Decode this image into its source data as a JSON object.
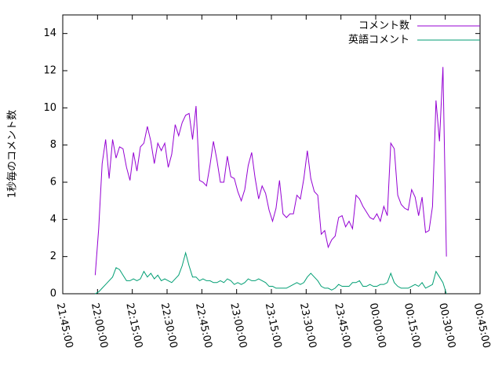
{
  "chart_data": {
    "type": "line",
    "ylabel": "1秒毎のコメント数",
    "xlim": [
      "21:45:00",
      "00:45:00"
    ],
    "xticks": [
      "21:45:00",
      "22:00:00",
      "22:15:00",
      "22:30:00",
      "22:45:00",
      "23:00:00",
      "23:15:00",
      "23:30:00",
      "23:45:00",
      "00:00:00",
      "00:15:00",
      "00:30:00",
      "00:45:00"
    ],
    "ylim": [
      0,
      15
    ],
    "yticks": [
      0,
      2,
      4,
      6,
      8,
      10,
      12,
      14
    ],
    "legend": "top-right",
    "x": [
      "21:59:00",
      "22:00:30",
      "22:02:00",
      "22:03:30",
      "22:05:00",
      "22:06:30",
      "22:08:00",
      "22:09:30",
      "22:11:00",
      "22:12:30",
      "22:14:00",
      "22:15:30",
      "22:17:00",
      "22:18:30",
      "22:20:00",
      "22:21:30",
      "22:23:00",
      "22:24:30",
      "22:26:00",
      "22:27:30",
      "22:29:00",
      "22:30:30",
      "22:32:00",
      "22:33:30",
      "22:35:00",
      "22:36:30",
      "22:38:00",
      "22:39:30",
      "22:41:00",
      "22:42:30",
      "22:44:00",
      "22:45:30",
      "22:47:00",
      "22:48:30",
      "22:50:00",
      "22:51:30",
      "22:53:00",
      "22:54:30",
      "22:56:00",
      "22:57:30",
      "22:59:00",
      "23:00:30",
      "23:02:00",
      "23:03:30",
      "23:05:00",
      "23:06:30",
      "23:08:00",
      "23:09:30",
      "23:11:00",
      "23:12:30",
      "23:14:00",
      "23:15:30",
      "23:17:00",
      "23:18:30",
      "23:20:00",
      "23:21:30",
      "23:23:00",
      "23:24:30",
      "23:26:00",
      "23:27:30",
      "23:29:00",
      "23:30:30",
      "23:32:00",
      "23:33:30",
      "23:35:00",
      "23:36:30",
      "23:38:00",
      "23:39:30",
      "23:41:00",
      "23:42:30",
      "23:44:00",
      "23:45:30",
      "23:47:00",
      "23:48:30",
      "23:50:00",
      "23:51:30",
      "23:53:00",
      "23:54:30",
      "23:56:00",
      "23:57:30",
      "23:59:00",
      "00:00:30",
      "00:02:00",
      "00:03:30",
      "00:05:00",
      "00:06:30",
      "00:08:00",
      "00:09:30",
      "00:11:00",
      "00:12:30",
      "00:14:00",
      "00:15:30",
      "00:17:00",
      "00:18:30",
      "00:20:00",
      "00:21:30",
      "00:23:00",
      "00:24:30",
      "00:26:00",
      "00:27:30",
      "00:29:00",
      "00:30:30"
    ],
    "series": [
      {
        "name": "コメント数",
        "color": "#9400d3",
        "values": [
          1.0,
          3.5,
          7.0,
          8.3,
          6.2,
          8.3,
          7.3,
          7.9,
          7.8,
          6.8,
          6.1,
          7.6,
          6.6,
          7.9,
          8.1,
          9.0,
          8.2,
          7.0,
          8.1,
          7.7,
          8.1,
          6.8,
          7.5,
          9.1,
          8.5,
          9.2,
          9.6,
          9.7,
          8.3,
          10.1,
          6.1,
          6.0,
          5.8,
          6.9,
          8.2,
          7.2,
          6.0,
          6.0,
          7.4,
          6.3,
          6.2,
          5.5,
          5.0,
          5.6,
          6.9,
          7.6,
          6.2,
          5.1,
          5.8,
          5.4,
          4.5,
          3.9,
          4.6,
          6.1,
          4.3,
          4.1,
          4.3,
          4.3,
          5.3,
          5.1,
          6.2,
          7.7,
          6.2,
          5.5,
          5.3,
          3.2,
          3.4,
          2.5,
          2.9,
          3.1,
          4.1,
          4.2,
          3.6,
          3.9,
          3.5,
          5.3,
          5.1,
          4.7,
          4.4,
          4.1,
          4.0,
          4.3,
          3.9,
          4.7,
          4.2,
          8.1,
          7.8,
          5.3,
          4.8,
          4.6,
          4.5,
          5.6,
          5.2,
          4.2,
          5.2,
          3.3,
          3.4,
          4.7,
          10.4,
          8.2,
          12.2,
          2.0
        ]
      },
      {
        "name": "英語コメント",
        "color": "#009e73",
        "values": [
          0,
          0.1,
          0.3,
          0.5,
          0.7,
          0.9,
          1.4,
          1.3,
          1.0,
          0.7,
          0.7,
          0.8,
          0.7,
          0.8,
          1.2,
          0.9,
          1.1,
          0.8,
          1.0,
          0.7,
          0.8,
          0.7,
          0.6,
          0.8,
          1.0,
          1.5,
          2.2,
          1.5,
          0.9,
          0.9,
          0.7,
          0.8,
          0.7,
          0.7,
          0.6,
          0.6,
          0.7,
          0.6,
          0.8,
          0.7,
          0.5,
          0.6,
          0.5,
          0.6,
          0.8,
          0.7,
          0.7,
          0.8,
          0.7,
          0.6,
          0.4,
          0.4,
          0.3,
          0.3,
          0.3,
          0.3,
          0.4,
          0.5,
          0.6,
          0.5,
          0.6,
          0.9,
          1.1,
          0.9,
          0.7,
          0.4,
          0.3,
          0.3,
          0.2,
          0.3,
          0.5,
          0.4,
          0.4,
          0.4,
          0.6,
          0.6,
          0.7,
          0.4,
          0.4,
          0.5,
          0.4,
          0.4,
          0.5,
          0.5,
          0.6,
          1.1,
          0.6,
          0.4,
          0.3,
          0.3,
          0.3,
          0.4,
          0.5,
          0.4,
          0.6,
          0.3,
          0.4,
          0.5,
          1.2,
          0.9,
          0.6,
          0
        ]
      }
    ]
  }
}
